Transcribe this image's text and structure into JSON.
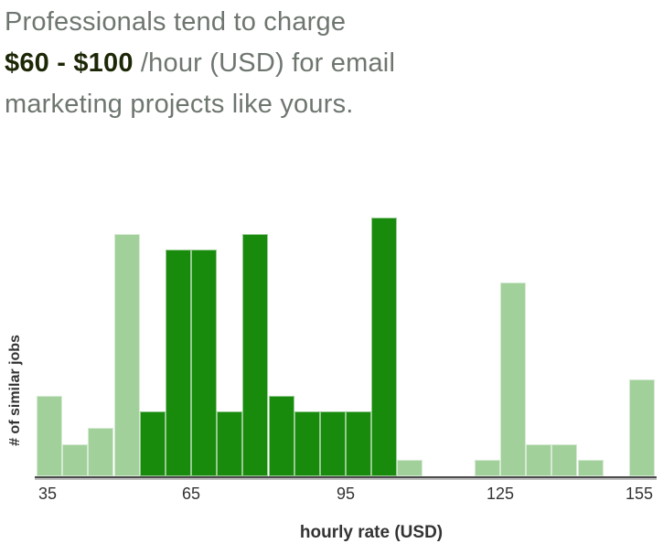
{
  "title": {
    "line1": "Professionals tend to charge",
    "line2_bold": "$60 - $100",
    "line2_rest": " /hour (USD) for email",
    "line3": "marketing projects like yours."
  },
  "chart_data": {
    "type": "bar",
    "subtype": "histogram",
    "title": "Professionals tend to charge $60 - $100 /hour (USD) for email marketing projects like yours.",
    "xlabel": "hourly rate (USD)",
    "ylabel": "# of similar jobs",
    "bin_width": 5,
    "bin_starts": [
      35,
      40,
      45,
      50,
      55,
      60,
      65,
      70,
      75,
      80,
      85,
      90,
      95,
      100,
      105,
      110,
      115,
      120,
      125,
      130,
      135,
      140,
      145,
      150
    ],
    "counts": [
      5,
      2,
      3,
      15,
      4,
      14,
      14,
      4,
      15,
      5,
      4,
      4,
      4,
      16,
      1,
      0,
      0,
      1,
      12,
      2,
      2,
      1,
      0,
      6
    ],
    "highlight_range": {
      "from": 55,
      "to": 105,
      "label": "$60 - $100"
    },
    "x_ticks": [
      {
        "value": 35,
        "label": "35"
      },
      {
        "value": 65,
        "label": "65"
      },
      {
        "value": 95,
        "label": "95"
      },
      {
        "value": 125,
        "label": "125"
      },
      {
        "value": 155,
        "label": "155"
      }
    ],
    "xlim": [
      35,
      155
    ],
    "ylim": [
      0,
      16
    ],
    "grid": false,
    "legend": false,
    "colors": {
      "highlight_bar": "#188a0c",
      "normal_bar": "#a2d09b",
      "axis_line": "#4c4c4c",
      "axis_shadow": "#bdbdbd",
      "tick_text": "#333333",
      "title_gray": "#6e766f",
      "title_emphasis": "#1c2706"
    }
  }
}
